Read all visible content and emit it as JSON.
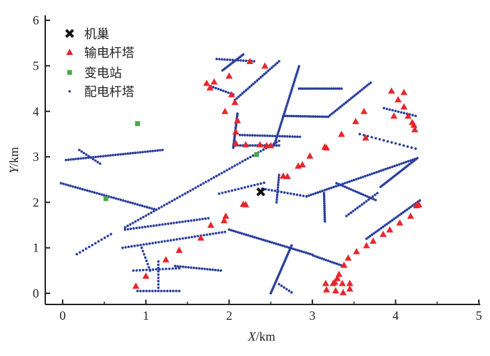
{
  "chart_data": {
    "type": "scatter",
    "title": "",
    "xlabel_var": "X",
    "xlabel_unit": "/km",
    "ylabel_var": "Y",
    "ylabel_unit": "/km",
    "xlim": [
      -0.21,
      5
    ],
    "ylim": [
      -0.25,
      6.1
    ],
    "xticks": [
      "0",
      "1",
      "2",
      "3",
      "4",
      "5"
    ],
    "yticks": [
      "0",
      "1",
      "2",
      "3",
      "4",
      "5",
      "6"
    ],
    "grid": false,
    "legend_position": "top-left",
    "colors": {
      "hive": "#111111",
      "transmission": "#e8262b",
      "substation": "#4aa84a",
      "distribution": "#2a3f9e"
    },
    "legend": [
      {
        "key": "hive",
        "label": "机巢"
      },
      {
        "key": "transmission",
        "label": "输电杆塔"
      },
      {
        "key": "substation",
        "label": "变电站"
      },
      {
        "key": "distribution",
        "label": "配电杆塔"
      }
    ],
    "series": {
      "hive": [
        [
          2.38,
          2.23
        ]
      ],
      "substation": [
        [
          0.9,
          3.73
        ],
        [
          0.52,
          2.08
        ],
        [
          2.33,
          3.05
        ]
      ],
      "transmission": [
        [
          2.25,
          5.1
        ],
        [
          2.43,
          5.0
        ],
        [
          1.73,
          4.62
        ],
        [
          1.77,
          4.52
        ],
        [
          1.82,
          4.65
        ],
        [
          2.0,
          4.78
        ],
        [
          2.07,
          4.2
        ],
        [
          1.95,
          4.0
        ],
        [
          2.03,
          4.37
        ],
        [
          2.08,
          3.3
        ],
        [
          2.08,
          3.55
        ],
        [
          2.1,
          3.8
        ],
        [
          2.2,
          3.27
        ],
        [
          2.37,
          3.27
        ],
        [
          2.45,
          3.25
        ],
        [
          2.5,
          3.25
        ],
        [
          2.65,
          2.58
        ],
        [
          2.7,
          2.57
        ],
        [
          2.83,
          2.8
        ],
        [
          2.88,
          2.83
        ],
        [
          2.97,
          3.02
        ],
        [
          3.15,
          3.22
        ],
        [
          3.17,
          3.2
        ],
        [
          3.35,
          3.5
        ],
        [
          3.52,
          3.78
        ],
        [
          3.62,
          4.0
        ],
        [
          3.64,
          3.42
        ],
        [
          3.95,
          4.45
        ],
        [
          4.1,
          4.42
        ],
        [
          4.03,
          4.26
        ],
        [
          4.1,
          4.1
        ],
        [
          3.98,
          3.9
        ],
        [
          4.15,
          3.9
        ],
        [
          4.2,
          3.76
        ],
        [
          4.22,
          3.7
        ],
        [
          4.23,
          3.6
        ],
        [
          4.28,
          1.95
        ],
        [
          4.25,
          1.93
        ],
        [
          4.18,
          1.7
        ],
        [
          4.05,
          1.55
        ],
        [
          3.93,
          1.4
        ],
        [
          3.85,
          1.3
        ],
        [
          3.73,
          1.15
        ],
        [
          3.65,
          1.05
        ],
        [
          3.53,
          0.92
        ],
        [
          3.43,
          0.78
        ],
        [
          3.38,
          0.62
        ],
        [
          3.32,
          0.42
        ],
        [
          3.3,
          0.33
        ],
        [
          3.27,
          0.25
        ],
        [
          3.16,
          0.22
        ],
        [
          3.25,
          0.22
        ],
        [
          3.36,
          0.22
        ],
        [
          3.45,
          0.22
        ],
        [
          3.17,
          0.08
        ],
        [
          3.28,
          0.06
        ],
        [
          3.37,
          0.02
        ],
        [
          3.45,
          0.1
        ],
        [
          0.88,
          0.16
        ],
        [
          1.0,
          0.38
        ],
        [
          1.24,
          0.74
        ],
        [
          1.4,
          0.95
        ],
        [
          1.66,
          1.22
        ],
        [
          1.78,
          1.5
        ],
        [
          1.94,
          1.6
        ],
        [
          1.96,
          1.7
        ],
        [
          2.17,
          1.96
        ],
        [
          2.2,
          1.95
        ]
      ],
      "distribution_lines": [
        {
          "from": [
            -0.02,
            2.42
          ],
          "to": [
            1.1,
            1.85
          ],
          "n": 40
        },
        {
          "from": [
            0.75,
            1.45
          ],
          "to": [
            2.6,
            3.35
          ],
          "n": 60
        },
        {
          "from": [
            2.05,
            3.2
          ],
          "to": [
            2.1,
            3.95
          ],
          "n": 25
        },
        {
          "from": [
            2.07,
            4.25
          ],
          "to": [
            2.6,
            5.1
          ],
          "n": 25
        },
        {
          "from": [
            1.92,
            4.9
          ],
          "to": [
            2.17,
            5.25
          ],
          "n": 15
        },
        {
          "from": [
            1.85,
            5.15
          ],
          "to": [
            2.3,
            5.1
          ],
          "n": 15
        },
        {
          "from": [
            1.78,
            4.55
          ],
          "to": [
            2.05,
            4.37
          ],
          "n": 10
        },
        {
          "from": [
            2.05,
            3.25
          ],
          "to": [
            2.6,
            3.25
          ],
          "n": 20
        },
        {
          "from": [
            2.13,
            3.48
          ],
          "to": [
            2.85,
            3.44
          ],
          "n": 25
        },
        {
          "from": [
            2.55,
            3.3
          ],
          "to": [
            2.84,
            4.99
          ],
          "n": 40
        },
        {
          "from": [
            2.65,
            3.9
          ],
          "to": [
            3.19,
            3.88
          ],
          "n": 22
        },
        {
          "from": [
            3.19,
            3.88
          ],
          "to": [
            3.7,
            4.63
          ],
          "n": 25
        },
        {
          "from": [
            2.84,
            4.5
          ],
          "to": [
            3.35,
            4.5
          ],
          "n": 22
        },
        {
          "from": [
            3.86,
            4.07
          ],
          "to": [
            4.24,
            3.9
          ],
          "n": 12
        },
        {
          "from": [
            3.57,
            3.5
          ],
          "to": [
            4.24,
            3.18
          ],
          "n": 15
        },
        {
          "from": [
            2.93,
            2.13
          ],
          "to": [
            4.26,
            2.97
          ],
          "n": 50
        },
        {
          "from": [
            2.4,
            2.3
          ],
          "to": [
            2.93,
            2.13
          ],
          "n": 15
        },
        {
          "from": [
            3.29,
            2.42
          ],
          "to": [
            3.76,
            2.05
          ],
          "n": 20
        },
        {
          "from": [
            3.82,
            2.34
          ],
          "to": [
            4.26,
            2.97
          ],
          "n": 25
        },
        {
          "from": [
            3.14,
            2.2
          ],
          "to": [
            3.15,
            1.58
          ],
          "n": 15
        },
        {
          "from": [
            3.41,
            1.7
          ],
          "to": [
            3.78,
            2.2
          ],
          "n": 15
        },
        {
          "from": [
            3.65,
            1.2
          ],
          "to": [
            4.29,
            2.04
          ],
          "n": 30
        },
        {
          "from": [
            3.01,
            0.83
          ],
          "to": [
            3.37,
            0.6
          ],
          "n": 15
        },
        {
          "from": [
            2.0,
            1.4
          ],
          "to": [
            3.0,
            0.85
          ],
          "n": 40
        },
        {
          "from": [
            2.5,
            0.0
          ],
          "to": [
            2.75,
            1.05
          ],
          "n": 30
        },
        {
          "from": [
            2.6,
            0.2
          ],
          "to": [
            2.75,
            0.02
          ],
          "n": 6
        },
        {
          "from": [
            0.04,
            2.93
          ],
          "to": [
            1.2,
            3.15
          ],
          "n": 40
        },
        {
          "from": [
            0.2,
            3.15
          ],
          "to": [
            0.45,
            2.85
          ],
          "n": 10
        },
        {
          "from": [
            0.17,
            0.86
          ],
          "to": [
            0.58,
            1.3
          ],
          "n": 12
        },
        {
          "from": [
            0.75,
            1.4
          ],
          "to": [
            1.75,
            1.65
          ],
          "n": 30
        },
        {
          "from": [
            0.72,
            1.0
          ],
          "to": [
            1.95,
            1.35
          ],
          "n": 35
        },
        {
          "from": [
            0.85,
            0.5
          ],
          "to": [
            1.4,
            0.55
          ],
          "n": 15
        },
        {
          "from": [
            1.35,
            0.6
          ],
          "to": [
            1.9,
            0.5
          ],
          "n": 18
        },
        {
          "from": [
            1.15,
            0.7
          ],
          "to": [
            1.15,
            0.05
          ],
          "n": 10
        },
        {
          "from": [
            0.9,
            0.05
          ],
          "to": [
            1.4,
            0.05
          ],
          "n": 15
        },
        {
          "from": [
            0.95,
            1.0
          ],
          "to": [
            1.05,
            0.5
          ],
          "n": 8
        },
        {
          "from": [
            1.88,
            2.19
          ],
          "to": [
            2.42,
            2.43
          ],
          "n": 15
        },
        {
          "from": [
            2.57,
            2.0
          ],
          "to": [
            2.6,
            2.6
          ],
          "n": 12
        }
      ]
    }
  }
}
